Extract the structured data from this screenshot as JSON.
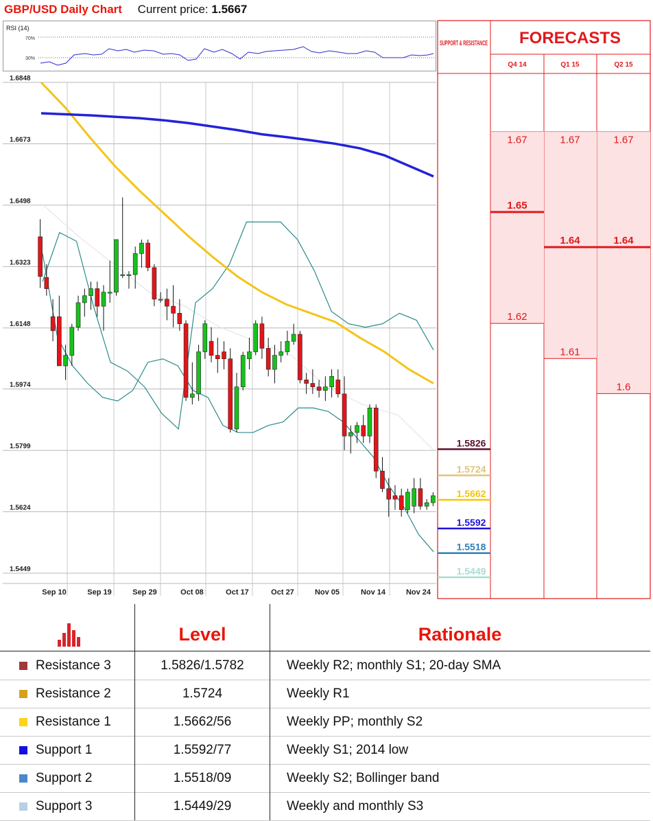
{
  "header": {
    "title": "GBP/USD Daily Chart",
    "price_label": "Current price:",
    "price_value": "1.5667"
  },
  "rsi": {
    "label": "RSI (14)",
    "levels": [
      "70%",
      "30%"
    ]
  },
  "chart_data": {
    "type": "candlestick",
    "title": "GBP/USD Daily Chart",
    "y_ticks": [
      "1.6848",
      "1.6673",
      "1.6498",
      "1.6323",
      "1.6148",
      "1.5974",
      "1.5799",
      "1.5624",
      "1.5449"
    ],
    "x_ticks": [
      "Sep 10",
      "Sep 19",
      "Sep 29",
      "Oct 08",
      "Oct 17",
      "Oct 27",
      "Nov 05",
      "Nov 14",
      "Nov 24"
    ],
    "ylim": [
      1.5449,
      1.6848
    ],
    "candles": [
      [
        1.6408,
        1.6458,
        1.6262,
        1.6295
      ],
      [
        1.6292,
        1.633,
        1.624,
        1.626
      ],
      [
        1.618,
        1.623,
        1.611,
        1.614
      ],
      [
        1.618,
        1.624,
        1.605,
        1.604
      ],
      [
        1.604,
        1.61,
        1.6,
        1.607
      ],
      [
        1.607,
        1.616,
        1.604,
        1.615
      ],
      [
        1.615,
        1.624,
        1.614,
        1.622
      ],
      [
        1.622,
        1.626,
        1.618,
        1.624
      ],
      [
        1.624,
        1.628,
        1.62,
        1.626
      ],
      [
        1.626,
        1.628,
        1.618,
        1.621
      ],
      [
        1.621,
        1.627,
        1.614,
        1.625
      ],
      [
        1.625,
        1.634,
        1.622,
        1.625
      ],
      [
        1.625,
        1.64,
        1.624,
        1.64
      ],
      [
        1.63,
        1.652,
        1.629,
        1.63
      ],
      [
        1.63,
        1.631,
        1.626,
        1.63
      ],
      [
        1.63,
        1.638,
        1.626,
        1.636
      ],
      [
        1.636,
        1.64,
        1.632,
        1.639
      ],
      [
        1.639,
        1.64,
        1.631,
        1.632
      ],
      [
        1.632,
        1.633,
        1.621,
        1.623
      ],
      [
        1.623,
        1.625,
        1.622,
        1.623
      ],
      [
        1.623,
        1.626,
        1.617,
        1.621
      ],
      [
        1.621,
        1.627,
        1.615,
        1.619
      ],
      [
        1.619,
        1.623,
        1.614,
        1.616
      ],
      [
        1.616,
        1.617,
        1.594,
        1.595
      ],
      [
        1.595,
        1.605,
        1.593,
        1.596
      ],
      [
        1.596,
        1.61,
        1.594,
        1.608
      ],
      [
        1.608,
        1.617,
        1.606,
        1.616
      ],
      [
        1.611,
        1.615,
        1.605,
        1.607
      ],
      [
        1.607,
        1.612,
        1.602,
        1.606
      ],
      [
        1.608,
        1.611,
        1.603,
        1.606
      ],
      [
        1.606,
        1.609,
        1.585,
        1.586
      ],
      [
        1.586,
        1.602,
        1.585,
        1.598
      ],
      [
        1.598,
        1.608,
        1.597,
        1.607
      ],
      [
        1.606,
        1.612,
        1.603,
        1.608
      ],
      [
        1.608,
        1.617,
        1.607,
        1.616
      ],
      [
        1.616,
        1.618,
        1.606,
        1.609
      ],
      [
        1.609,
        1.612,
        1.601,
        1.603
      ],
      [
        1.603,
        1.61,
        1.599,
        1.607
      ],
      [
        1.607,
        1.611,
        1.605,
        1.608
      ],
      [
        1.608,
        1.614,
        1.607,
        1.611
      ],
      [
        1.611,
        1.616,
        1.61,
        1.613
      ],
      [
        1.613,
        1.614,
        1.599,
        1.6
      ],
      [
        1.6,
        1.602,
        1.596,
        1.599
      ],
      [
        1.599,
        1.603,
        1.596,
        1.598
      ],
      [
        1.598,
        1.6,
        1.595,
        1.597
      ],
      [
        1.597,
        1.601,
        1.594,
        1.598
      ],
      [
        1.598,
        1.603,
        1.595,
        1.601
      ],
      [
        1.6,
        1.603,
        1.595,
        1.596
      ],
      [
        1.596,
        1.601,
        1.58,
        1.584
      ],
      [
        1.584,
        1.587,
        1.579,
        1.585
      ],
      [
        1.585,
        1.588,
        1.582,
        1.587
      ],
      [
        1.587,
        1.59,
        1.582,
        1.584
      ],
      [
        1.584,
        1.593,
        1.582,
        1.592
      ],
      [
        1.592,
        1.593,
        1.572,
        1.574
      ],
      [
        1.574,
        1.578,
        1.568,
        1.569
      ],
      [
        1.569,
        1.572,
        1.561,
        1.566
      ],
      [
        1.567,
        1.57,
        1.563,
        1.566
      ],
      [
        1.567,
        1.569,
        1.561,
        1.563
      ],
      [
        1.563,
        1.569,
        1.562,
        1.568
      ],
      [
        1.564,
        1.572,
        1.562,
        1.569
      ],
      [
        1.569,
        1.572,
        1.563,
        1.564
      ],
      [
        1.564,
        1.566,
        1.563,
        1.565
      ],
      [
        1.565,
        1.568,
        1.564,
        1.567
      ]
    ],
    "sma200": [
      1.676,
      1.6757,
      1.6754,
      1.675,
      1.6746,
      1.674,
      1.6732,
      1.6722,
      1.6712,
      1.67,
      1.6692,
      1.6683,
      1.6673,
      1.666,
      1.664,
      1.661,
      1.658
    ],
    "sma55": [
      1.6848,
      1.6775,
      1.669,
      1.661,
      1.654,
      1.6475,
      1.641,
      1.635,
      1.6295,
      1.625,
      1.6215,
      1.619,
      1.6165,
      1.612,
      1.608,
      1.603,
      1.599
    ],
    "bb_upper": [
      1.628,
      1.642,
      1.6395,
      1.621,
      1.605,
      1.6025,
      1.598,
      1.5905,
      1.586,
      1.622,
      1.626,
      1.633,
      1.645,
      1.645,
      1.645,
      1.64,
      1.631,
      1.6195,
      1.616,
      1.615,
      1.616,
      1.619,
      1.617,
      1.6085
    ],
    "bb_mid": [
      1.65,
      1.641,
      1.633,
      1.625,
      1.621,
      1.615,
      1.611,
      1.607,
      1.598,
      1.593,
      1.59,
      1.58
    ],
    "bb_lower": [
      1.636,
      1.612,
      1.604,
      1.599,
      1.595,
      1.594,
      1.597,
      1.605,
      1.606,
      1.604,
      1.597,
      1.595,
      1.587,
      1.585,
      1.585,
      1.587,
      1.588,
      1.592,
      1.592,
      1.591,
      1.588,
      1.583,
      1.578,
      1.57,
      1.564,
      1.556,
      1.551
    ]
  },
  "sr": {
    "header": "SUPPORT & RESISTANCE",
    "levels": [
      {
        "label": "1.5826",
        "value": 1.5826,
        "color": "#5c0f2e"
      },
      {
        "label": "1.5724",
        "value": 1.5724,
        "color": "#e0c47a"
      },
      {
        "label": "1.5662",
        "value": 1.5662,
        "color": "#f7c600"
      },
      {
        "label": "1.5592",
        "value": 1.5592,
        "color": "#1f12d8"
      },
      {
        "label": "1.5518",
        "value": 1.5518,
        "color": "#2f7fb5"
      },
      {
        "label": "1.5449",
        "value": 1.5449,
        "color": "#a8dcd2"
      }
    ]
  },
  "forecasts": {
    "title": "FORECASTS",
    "columns": [
      {
        "label": "Q4 14",
        "high": "1.67",
        "median": "1.65",
        "low": "1.62",
        "high_v": 1.67,
        "median_v": 1.65,
        "low_v": 1.62
      },
      {
        "label": "Q1 15",
        "high": "1.67",
        "median": "1.64",
        "low": "1.61",
        "high_v": 1.67,
        "median_v": 1.64,
        "low_v": 1.61
      },
      {
        "label": "Q2 15",
        "high": "1.67",
        "median": "1.64",
        "low": "1.6",
        "high_v": 1.67,
        "median_v": 1.64,
        "low_v": 1.6
      }
    ]
  },
  "table": {
    "col_level": "Level",
    "col_rationale": "Rationale",
    "rows": [
      {
        "name": "Resistance 3",
        "level": "1.5826/1.5782",
        "rationale": "Weekly R2; monthly S1; 20-day SMA",
        "color": "#a0393b"
      },
      {
        "name": "Resistance 2",
        "level": "1.5724",
        "rationale": "Weekly R1",
        "color": "#d4a21a"
      },
      {
        "name": "Resistance 1",
        "level": "1.5662/56",
        "rationale": "Weekly PP; monthly S2",
        "color": "#ffd21c"
      },
      {
        "name": "Support 1",
        "level": "1.5592/77",
        "rationale": "Weekly S1; 2014 low",
        "color": "#1010e0"
      },
      {
        "name": "Support 2",
        "level": "1.5518/09",
        "rationale": "Weekly S2; Bollinger band",
        "color": "#4a88c8"
      },
      {
        "name": "Support 3",
        "level": "1.5449/29",
        "rationale": "Weekly and monthly S3",
        "color": "#b9cfe8"
      }
    ]
  }
}
